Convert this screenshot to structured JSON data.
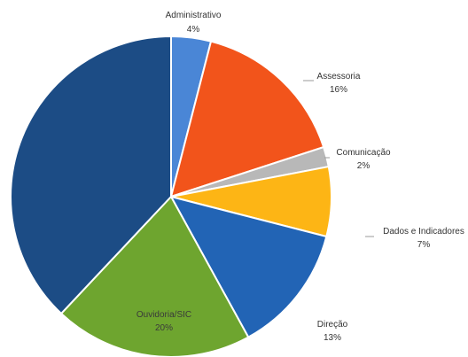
{
  "chart_data": {
    "type": "pie",
    "title": "",
    "slices": [
      {
        "label": "Administrativo",
        "value": 4,
        "value_label": "4%",
        "color": "#4A86D6"
      },
      {
        "label": "Assessoria",
        "value": 16,
        "value_label": "16%",
        "color": "#F2541B"
      },
      {
        "label": "Comunicação",
        "value": 2,
        "value_label": "2%",
        "color": "#B8B8B8"
      },
      {
        "label": "Dados e Indicadores",
        "value": 7,
        "value_label": "7%",
        "color": "#FDB515"
      },
      {
        "label": "Direção",
        "value": 13,
        "value_label": "13%",
        "color": "#2264B5"
      },
      {
        "label": "Ouvidoria/SIC",
        "value": 20,
        "value_label": "20%",
        "color": "#6EA52F"
      },
      {
        "label": "",
        "value": 38,
        "value_label": "",
        "color": "#1C4C85"
      }
    ],
    "legend": "none"
  }
}
